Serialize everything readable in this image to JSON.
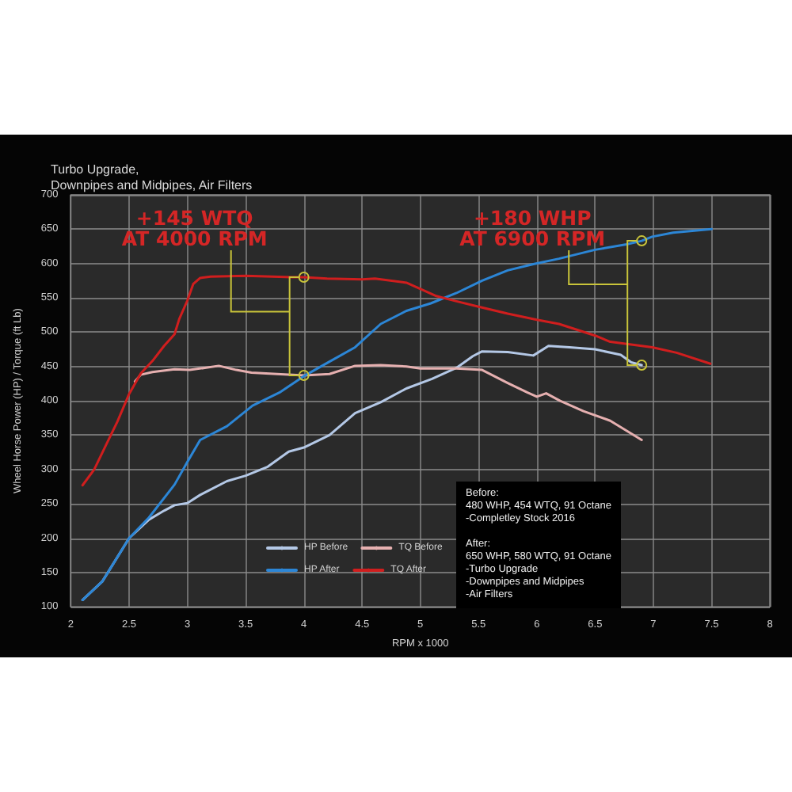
{
  "chart_data": {
    "type": "line",
    "title": "Turbo Upgrade,\nDownpipes and Midpipes, Air Filters",
    "xlabel": "RPM x 1000",
    "ylabel": "Wheel Horse Power (HP) / Torque (ft Lb)",
    "xlim": [
      2,
      8
    ],
    "xticks": [
      2,
      2.5,
      3,
      3.5,
      4,
      4.5,
      5,
      5.5,
      6,
      6.5,
      7,
      7.5,
      8
    ],
    "ylim": [
      100,
      700
    ],
    "yticks": [
      100,
      150,
      200,
      250,
      300,
      350,
      400,
      450,
      500,
      550,
      600,
      650,
      700
    ],
    "grid": true,
    "legend": "bottom",
    "marker": "none",
    "line_style": "solid",
    "series": [
      {
        "name": "HP Before",
        "color": "#b4c8e6",
        "x": [
          2.1,
          2.27,
          2.5,
          2.67,
          2.8,
          2.89,
          3.0,
          3.11,
          3.34,
          3.5,
          3.69,
          3.87,
          4.0,
          4.22,
          4.44,
          4.66,
          4.88,
          5.1,
          5.31,
          5.45,
          5.53,
          5.75,
          5.97,
          6.1,
          6.28,
          6.5,
          6.72,
          6.81,
          6.9
        ],
        "values": [
          110,
          137,
          200,
          227,
          240,
          248,
          251,
          263,
          283,
          291,
          304,
          326,
          332,
          350,
          382,
          398,
          418,
          432,
          448,
          465,
          472,
          471,
          466,
          480,
          478,
          475,
          467,
          456,
          452
        ]
      },
      {
        "name": "TQ Before",
        "color": "#e6b0b0",
        "x": [
          2.55,
          2.6,
          2.7,
          2.89,
          3.02,
          3.15,
          3.27,
          3.42,
          3.55,
          3.77,
          4.0,
          4.22,
          4.44,
          4.66,
          4.88,
          5.0,
          5.31,
          5.53,
          5.75,
          5.92,
          6.0,
          6.08,
          6.2,
          6.4,
          6.63,
          6.9
        ],
        "values": [
          428,
          438,
          442,
          446,
          445,
          448,
          451,
          445,
          441,
          439,
          437,
          439,
          451,
          452,
          450,
          447,
          447,
          445,
          426,
          412,
          406,
          411,
          400,
          385,
          371,
          343
        ]
      },
      {
        "name": "HP After",
        "color": "#2c86d6",
        "x": [
          2.1,
          2.27,
          2.5,
          2.67,
          2.89,
          3.0,
          3.11,
          3.34,
          3.56,
          3.79,
          4.0,
          4.22,
          4.44,
          4.66,
          4.88,
          5.09,
          5.31,
          5.53,
          5.75,
          5.97,
          6.19,
          6.5,
          6.77,
          6.9,
          6.99,
          7.17,
          7.5
        ],
        "values": [
          110,
          137,
          200,
          230,
          278,
          311,
          343,
          363,
          393,
          412,
          436,
          457,
          478,
          512,
          531,
          542,
          557,
          575,
          590,
          599,
          607,
          620,
          628,
          633,
          639,
          645,
          650
        ]
      },
      {
        "name": "TQ After",
        "color": "#d01e1e",
        "x": [
          2.1,
          2.2,
          2.3,
          2.4,
          2.5,
          2.6,
          2.7,
          2.8,
          2.89,
          2.93,
          3.0,
          3.05,
          3.11,
          3.2,
          3.5,
          3.9,
          4.0,
          4.2,
          4.5,
          4.61,
          4.88,
          5.13,
          5.31,
          5.5,
          5.75,
          6.0,
          6.19,
          6.5,
          6.63,
          6.99,
          7.2,
          7.49
        ],
        "values": [
          277,
          300,
          335,
          370,
          410,
          440,
          458,
          480,
          497,
          519,
          546,
          570,
          579,
          581,
          582,
          580,
          580,
          578,
          577,
          578,
          572,
          553,
          545,
          537,
          527,
          518,
          512,
          495,
          486,
          478,
          470,
          454
        ]
      }
    ],
    "annotations": [
      {
        "text": "+145 WTQ\nAT 4000 RPM",
        "x": 4,
        "y": 580
      },
      {
        "text": "+180 WHP\nAT 6900 RPM",
        "x": 6.9,
        "y": 633
      },
      "Before:\n480 WHP, 454 WTQ, 91 Octane\n-Completley Stock 2016\n\nAfter:\n650 WHP, 580 WTQ, 91 Octane\n-Turbo Upgrade\n-Downpipes and Midpipes\n-Air Filters"
    ]
  }
}
